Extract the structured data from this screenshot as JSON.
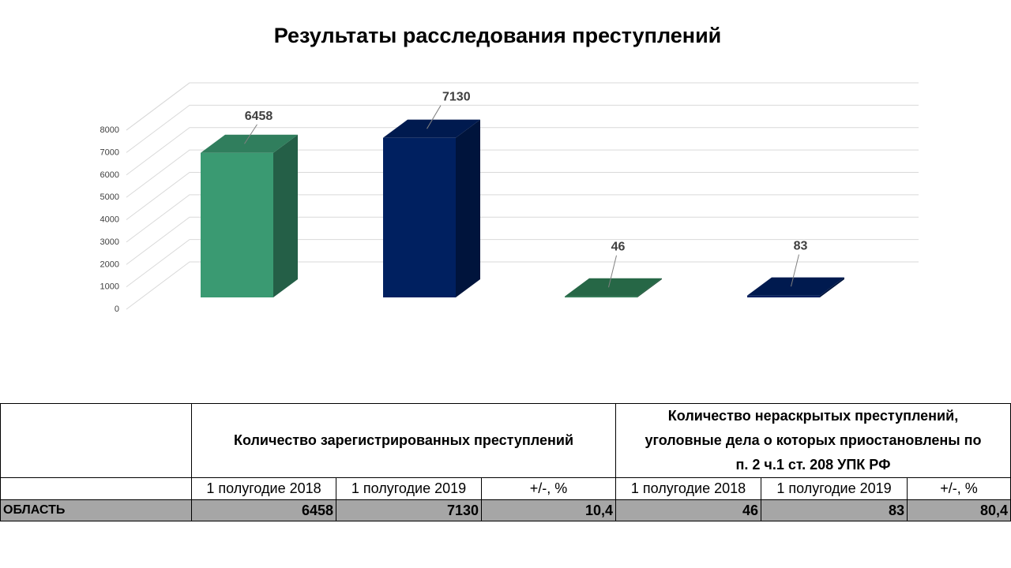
{
  "chart_data": {
    "type": "bar",
    "title": "Результаты расследования преступлений",
    "categories": [
      "1 полугодие 2018",
      "1 полугодие 2019",
      "1 полугодие 2018",
      "1 полугодие 2019"
    ],
    "values": [
      6458,
      7130,
      46,
      83
    ],
    "data_labels": [
      "6458",
      "7130",
      "46",
      "83"
    ],
    "colors": [
      "#3a9a72",
      "#002060",
      "#2e7d55",
      "#002060"
    ],
    "ylim": [
      0,
      8000
    ],
    "yticks": [
      "0",
      "1000",
      "2000",
      "3000",
      "4000",
      "5000",
      "6000",
      "7000",
      "8000"
    ],
    "grid": true,
    "style": "3d-column"
  },
  "table": {
    "group1_header": "Количество зарегистрированных преступлений",
    "group2_header_lines": [
      "Количество нераскрытых преступлений,",
      "уголовные дела о которых приостановлены по",
      "п. 2  ч.1 ст. 208 УПК РФ"
    ],
    "subheaders": [
      "1 полугодие 2018",
      "1 полугодие 2019",
      "+/-, %",
      "1 полугодие 2018",
      "1 полугодие 2019",
      "+/-, %"
    ],
    "row": {
      "name": "ОБЛАСТЬ",
      "values": [
        "6458",
        "7130",
        "10,4",
        "46",
        "83",
        "80,4"
      ]
    }
  }
}
